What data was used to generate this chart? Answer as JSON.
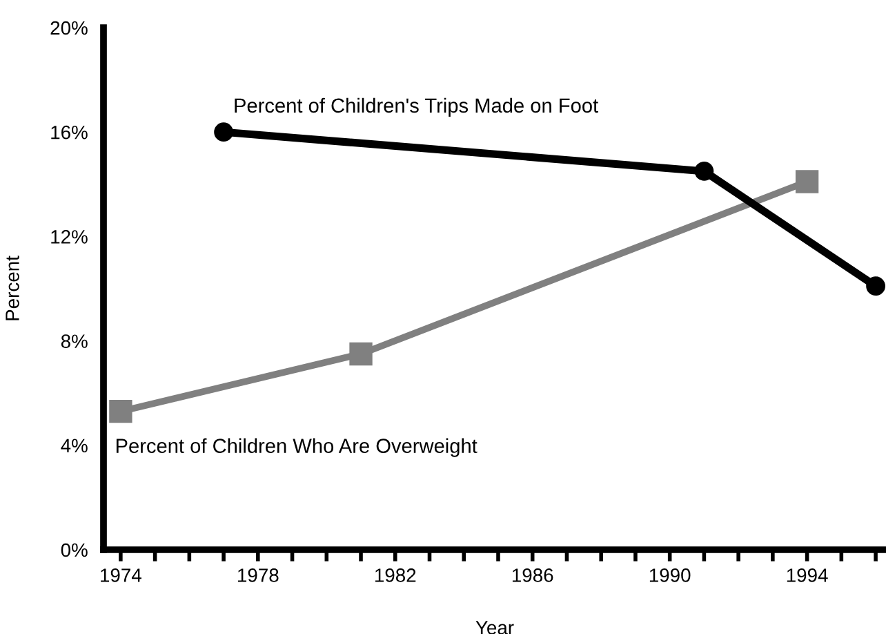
{
  "chart_data": {
    "type": "line",
    "xlabel": "Year",
    "ylabel": "Percent",
    "series": [
      {
        "name": "Percent of Children's Trips Made on Foot",
        "color": "#000000",
        "marker": "circle",
        "x": [
          1977,
          1991,
          1996
        ],
        "values": [
          16.0,
          14.5,
          10.1
        ]
      },
      {
        "name": "Percent of Children Who Are Overweight",
        "color": "#808080",
        "marker": "square",
        "x": [
          1974,
          1981,
          1994
        ],
        "values": [
          5.3,
          7.5,
          14.1
        ]
      }
    ],
    "xlim": [
      1973.5,
      1996.3
    ],
    "xticks": [
      1974,
      {
        "value": 1975,
        "label": null
      },
      {
        "value": 1976,
        "label": null
      },
      {
        "value": 1977,
        "label": null
      },
      1978,
      {
        "value": 1979,
        "label": null
      },
      {
        "value": 1980,
        "label": null
      },
      {
        "value": 1981,
        "label": null
      },
      1982,
      {
        "value": 1983,
        "label": null
      },
      {
        "value": 1984,
        "label": null
      },
      {
        "value": 1985,
        "label": null
      },
      1986,
      {
        "value": 1987,
        "label": null
      },
      {
        "value": 1988,
        "label": null
      },
      {
        "value": 1989,
        "label": null
      },
      1990,
      {
        "value": 1991,
        "label": null
      },
      {
        "value": 1992,
        "label": null
      },
      {
        "value": 1993,
        "label": null
      },
      1994,
      {
        "value": 1995,
        "label": null
      },
      {
        "value": 1996,
        "label": null
      }
    ],
    "ylim": [
      0,
      20
    ],
    "yticks": [
      {
        "value": 0,
        "label": "0%"
      },
      {
        "value": 4,
        "label": "4%"
      },
      {
        "value": 8,
        "label": "8%"
      },
      {
        "value": 12,
        "label": "12%"
      },
      {
        "value": 16,
        "label": "16%"
      },
      {
        "value": 20,
        "label": "20%"
      }
    ],
    "grid": false,
    "legend": false
  }
}
